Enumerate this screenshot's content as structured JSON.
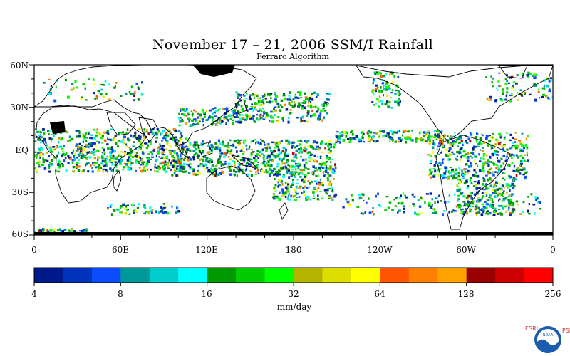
{
  "title": "November 17 – 21, 2006 SSM/I Rainfall",
  "subtitle": "Ferraro Algorithm",
  "map": {
    "lat_labels": [
      "60N",
      "30N",
      "EQ",
      "30S",
      "60S"
    ],
    "lon_labels": [
      "0",
      "60E",
      "120E",
      "180",
      "120W",
      "60W",
      "0"
    ],
    "land_color": "#000000",
    "ocean_color": "#ffffff"
  },
  "colorbar": {
    "colors": [
      "#001a8c",
      "#0033bb",
      "#0b4cff",
      "#009999",
      "#00cccc",
      "#00ffff",
      "#009900",
      "#00cc00",
      "#00ff00",
      "#b3b300",
      "#dddd00",
      "#ffff00",
      "#ff5500",
      "#ff7f00",
      "#ffa200",
      "#990000",
      "#cc0000",
      "#ff0000"
    ],
    "tick_labels": [
      "4",
      "8",
      "16",
      "32",
      "64",
      "128",
      "256"
    ],
    "units": "mm/day"
  },
  "logo": {
    "name": "noaa-logo",
    "left_text": "ESRL",
    "right_text": "PSD",
    "center_text": "NOAA"
  }
}
